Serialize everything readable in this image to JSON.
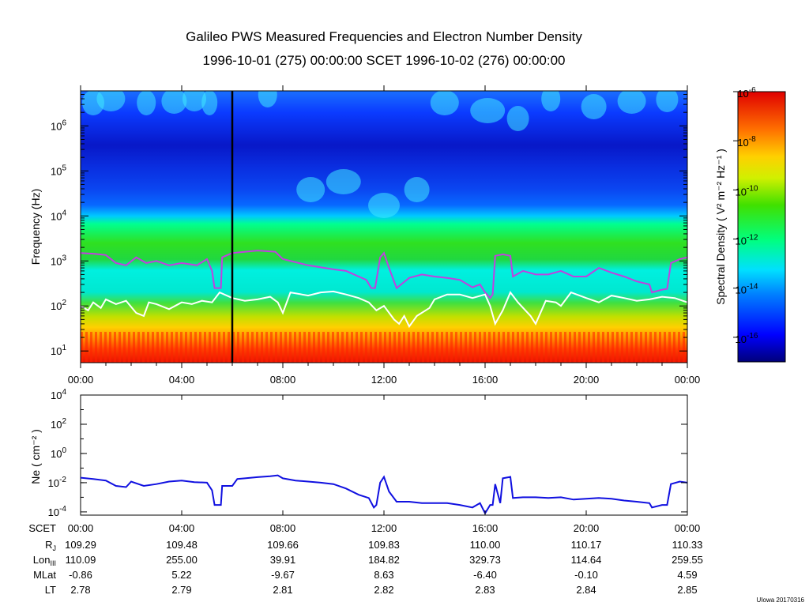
{
  "figure": {
    "title": "Galileo PWS Measured Frequencies and Electron Number Density",
    "subtitle": "1996-10-01 (275) 00:00:00 SCET 1996-10-02 (276) 00:00:00",
    "credit": "UIowa 20170316"
  },
  "chart_data": [
    {
      "type": "heatmap",
      "name": "spectrogram",
      "ylabel_text": "Frequency (Hz)",
      "y_scale": "log",
      "ylim": [
        5.5,
        6000000
      ],
      "y_ticks": [
        {
          "value": 10,
          "base": "10",
          "exp": "1"
        },
        {
          "value": 100,
          "base": "10",
          "exp": "2"
        },
        {
          "value": 1000,
          "base": "10",
          "exp": "3"
        },
        {
          "value": 10000,
          "base": "10",
          "exp": "4"
        },
        {
          "value": 100000,
          "base": "10",
          "exp": "5"
        },
        {
          "value": 1000000,
          "base": "10",
          "exp": "6"
        }
      ],
      "x_range_hours": [
        0,
        24
      ],
      "x_ticks": [
        {
          "hour": 0,
          "label": "00:00"
        },
        {
          "hour": 4,
          "label": "04:00"
        },
        {
          "hour": 8,
          "label": "08:00"
        },
        {
          "hour": 12,
          "label": "12:00"
        },
        {
          "hour": 16,
          "label": "16:00"
        },
        {
          "hour": 20,
          "label": "20:00"
        },
        {
          "hour": 24,
          "label": "00:00"
        }
      ],
      "marker_hour": 6.0,
      "colorbar": {
        "label": "Spectral Density ( V² m⁻² Hz⁻¹ )",
        "scale": "log",
        "range": [
          1e-17,
          1e-06
        ],
        "ticks": [
          {
            "value": 1e-06,
            "base": "10",
            "exp": "-6"
          },
          {
            "value": 1e-08,
            "base": "10",
            "exp": "-8"
          },
          {
            "value": 1e-10,
            "base": "10",
            "exp": "-10"
          },
          {
            "value": 1e-12,
            "base": "10",
            "exp": "-12"
          },
          {
            "value": 1e-14,
            "base": "10",
            "exp": "-14"
          },
          {
            "value": 1e-16,
            "base": "10",
            "exp": "-16"
          }
        ]
      },
      "series": [
        {
          "name": "upper-frequency-boundary",
          "color": "#c040e0",
          "points": [
            [
              0,
              1500
            ],
            [
              0.5,
              1450
            ],
            [
              1,
              1350
            ],
            [
              1.4,
              900
            ],
            [
              1.8,
              800
            ],
            [
              2.2,
              1200
            ],
            [
              2.6,
              900
            ],
            [
              3.0,
              1000
            ],
            [
              3.5,
              800
            ],
            [
              4.0,
              900
            ],
            [
              4.6,
              800
            ],
            [
              5.0,
              1100
            ],
            [
              5.2,
              600
            ],
            [
              5.3,
              250
            ],
            [
              5.55,
              250
            ],
            [
              5.6,
              1200
            ],
            [
              6.0,
              1500
            ],
            [
              7.0,
              1700
            ],
            [
              7.7,
              1600
            ],
            [
              8.0,
              1100
            ],
            [
              9.0,
              800
            ],
            [
              10.0,
              650
            ],
            [
              10.5,
              600
            ],
            [
              11.0,
              450
            ],
            [
              11.3,
              380
            ],
            [
              11.5,
              250
            ],
            [
              11.65,
              250
            ],
            [
              11.85,
              1200
            ],
            [
              12.0,
              1500
            ],
            [
              12.2,
              700
            ],
            [
              12.5,
              250
            ],
            [
              13.0,
              420
            ],
            [
              13.5,
              500
            ],
            [
              14.0,
              450
            ],
            [
              14.5,
              420
            ],
            [
              15.0,
              380
            ],
            [
              15.5,
              260
            ],
            [
              15.8,
              300
            ],
            [
              16.0,
              200
            ],
            [
              16.2,
              150
            ],
            [
              16.3,
              180
            ],
            [
              16.4,
              1300
            ],
            [
              16.7,
              1400
            ],
            [
              17.0,
              1300
            ],
            [
              17.1,
              450
            ],
            [
              17.5,
              600
            ],
            [
              18.0,
              500
            ],
            [
              18.5,
              500
            ],
            [
              19.0,
              600
            ],
            [
              19.5,
              450
            ],
            [
              20.0,
              450
            ],
            [
              20.5,
              700
            ],
            [
              21.0,
              550
            ],
            [
              21.5,
              450
            ],
            [
              22.0,
              350
            ],
            [
              22.5,
              300
            ],
            [
              22.6,
              200
            ],
            [
              23.0,
              230
            ],
            [
              23.2,
              240
            ],
            [
              23.35,
              900
            ],
            [
              23.7,
              1100
            ],
            [
              24,
              1200
            ]
          ]
        },
        {
          "name": "lower-frequency-boundary",
          "color": "#ffffff",
          "points": [
            [
              0,
              100
            ],
            [
              0.3,
              80
            ],
            [
              0.5,
              120
            ],
            [
              0.8,
              90
            ],
            [
              1,
              140
            ],
            [
              1.4,
              110
            ],
            [
              1.8,
              130
            ],
            [
              2.2,
              70
            ],
            [
              2.5,
              60
            ],
            [
              2.7,
              120
            ],
            [
              3.0,
              110
            ],
            [
              3.5,
              85
            ],
            [
              4.0,
              120
            ],
            [
              4.4,
              110
            ],
            [
              4.8,
              130
            ],
            [
              5.2,
              120
            ],
            [
              5.5,
              200
            ],
            [
              6.0,
              150
            ],
            [
              6.5,
              130
            ],
            [
              7.0,
              140
            ],
            [
              7.5,
              160
            ],
            [
              7.8,
              120
            ],
            [
              8.0,
              70
            ],
            [
              8.3,
              200
            ],
            [
              9.0,
              170
            ],
            [
              9.5,
              200
            ],
            [
              10.0,
              210
            ],
            [
              10.5,
              180
            ],
            [
              11.0,
              150
            ],
            [
              11.4,
              120
            ],
            [
              11.7,
              80
            ],
            [
              12.0,
              100
            ],
            [
              12.4,
              50
            ],
            [
              12.6,
              40
            ],
            [
              12.8,
              60
            ],
            [
              13.0,
              35
            ],
            [
              13.3,
              60
            ],
            [
              13.8,
              90
            ],
            [
              14.0,
              140
            ],
            [
              14.5,
              180
            ],
            [
              15.0,
              180
            ],
            [
              15.5,
              150
            ],
            [
              16.0,
              180
            ],
            [
              16.2,
              100
            ],
            [
              16.4,
              40
            ],
            [
              16.7,
              80
            ],
            [
              17.0,
              200
            ],
            [
              17.3,
              120
            ],
            [
              17.8,
              60
            ],
            [
              18.0,
              40
            ],
            [
              18.4,
              130
            ],
            [
              18.8,
              120
            ],
            [
              19.0,
              100
            ],
            [
              19.4,
              200
            ],
            [
              20.0,
              150
            ],
            [
              20.5,
              120
            ],
            [
              21.0,
              170
            ],
            [
              21.5,
              150
            ],
            [
              22.0,
              130
            ],
            [
              22.5,
              140
            ],
            [
              23.0,
              160
            ],
            [
              23.5,
              150
            ],
            [
              24,
              120
            ]
          ]
        }
      ]
    },
    {
      "type": "line",
      "name": "electron-density",
      "ylabel_text": "Ne ( cm⁻² )",
      "y_scale": "log",
      "ylim": [
        6e-05,
        10000
      ],
      "y_ticks": [
        {
          "value": 10000,
          "base": "10",
          "exp": "4"
        },
        {
          "value": 100,
          "base": "10",
          "exp": "2"
        },
        {
          "value": 1,
          "base": "10",
          "exp": "0"
        },
        {
          "value": 0.01,
          "base": "10",
          "exp": "-2"
        },
        {
          "value": 0.0001,
          "base": "10",
          "exp": "-4"
        }
      ],
      "x_range_hours": [
        0,
        24
      ],
      "series": [
        {
          "name": "Ne",
          "color": "#1010e0",
          "points": [
            [
              0,
              0.022
            ],
            [
              0.5,
              0.018
            ],
            [
              1.0,
              0.014
            ],
            [
              1.4,
              0.006
            ],
            [
              1.8,
              0.005
            ],
            [
              2.0,
              0.012
            ],
            [
              2.5,
              0.006
            ],
            [
              3.0,
              0.008
            ],
            [
              3.5,
              0.012
            ],
            [
              4.0,
              0.014
            ],
            [
              4.5,
              0.011
            ],
            [
              5.0,
              0.01
            ],
            [
              5.2,
              0.003
            ],
            [
              5.3,
              0.0003
            ],
            [
              5.55,
              0.0003
            ],
            [
              5.6,
              0.006
            ],
            [
              6.0,
              0.006
            ],
            [
              6.2,
              0.018
            ],
            [
              6.5,
              0.02
            ],
            [
              7.0,
              0.024
            ],
            [
              7.5,
              0.028
            ],
            [
              7.8,
              0.032
            ],
            [
              8.0,
              0.02
            ],
            [
              8.5,
              0.014
            ],
            [
              9.0,
              0.012
            ],
            [
              9.5,
              0.01
            ],
            [
              10.0,
              0.008
            ],
            [
              10.5,
              0.004
            ],
            [
              11.0,
              0.0015
            ],
            [
              11.4,
              0.0009
            ],
            [
              11.6,
              0.0002
            ],
            [
              11.7,
              0.0003
            ],
            [
              11.85,
              0.01
            ],
            [
              12.0,
              0.025
            ],
            [
              12.2,
              0.0025
            ],
            [
              12.5,
              0.0005
            ],
            [
              13.0,
              0.0005
            ],
            [
              13.5,
              0.0004
            ],
            [
              14.0,
              0.0004
            ],
            [
              14.5,
              0.0004
            ],
            [
              15.0,
              0.0003
            ],
            [
              15.5,
              0.0002
            ],
            [
              15.8,
              0.0004
            ],
            [
              16.0,
              8e-05
            ],
            [
              16.2,
              0.0003
            ],
            [
              16.3,
              0.0003
            ],
            [
              16.4,
              0.008
            ],
            [
              16.6,
              0.0004
            ],
            [
              16.7,
              0.02
            ],
            [
              17.0,
              0.025
            ],
            [
              17.1,
              0.0009
            ],
            [
              17.5,
              0.001
            ],
            [
              18.0,
              0.001
            ],
            [
              18.5,
              0.0009
            ],
            [
              19.0,
              0.001
            ],
            [
              19.5,
              0.0007
            ],
            [
              20.0,
              0.0008
            ],
            [
              20.5,
              0.0009
            ],
            [
              21.0,
              0.0008
            ],
            [
              21.5,
              0.0006
            ],
            [
              22.0,
              0.0005
            ],
            [
              22.5,
              0.0004
            ],
            [
              22.6,
              0.0002
            ],
            [
              23.0,
              0.0003
            ],
            [
              23.2,
              0.0003
            ],
            [
              23.35,
              0.008
            ],
            [
              23.7,
              0.012
            ],
            [
              24,
              0.01
            ]
          ]
        }
      ]
    }
  ],
  "ephemeris": {
    "row_labels": [
      {
        "text": "SCET",
        "sub": ""
      },
      {
        "text": "R",
        "sub": "J"
      },
      {
        "text": "Lon",
        "sub": "III"
      },
      {
        "text": "MLat",
        "sub": ""
      },
      {
        "text": "LT",
        "sub": ""
      }
    ],
    "columns": [
      [
        "00:00",
        "109.29",
        "110.09",
        "-0.86",
        "2.78"
      ],
      [
        "04:00",
        "109.48",
        "255.00",
        "5.22",
        "2.79"
      ],
      [
        "08:00",
        "109.66",
        "39.91",
        "-9.67",
        "2.81"
      ],
      [
        "12:00",
        "109.83",
        "184.82",
        "8.63",
        "2.82"
      ],
      [
        "16:00",
        "110.00",
        "329.73",
        "-6.40",
        "2.83"
      ],
      [
        "20:00",
        "110.17",
        "114.64",
        "-0.10",
        "2.84"
      ],
      [
        "00:00",
        "110.33",
        "259.55",
        "4.59",
        "2.85"
      ]
    ]
  }
}
